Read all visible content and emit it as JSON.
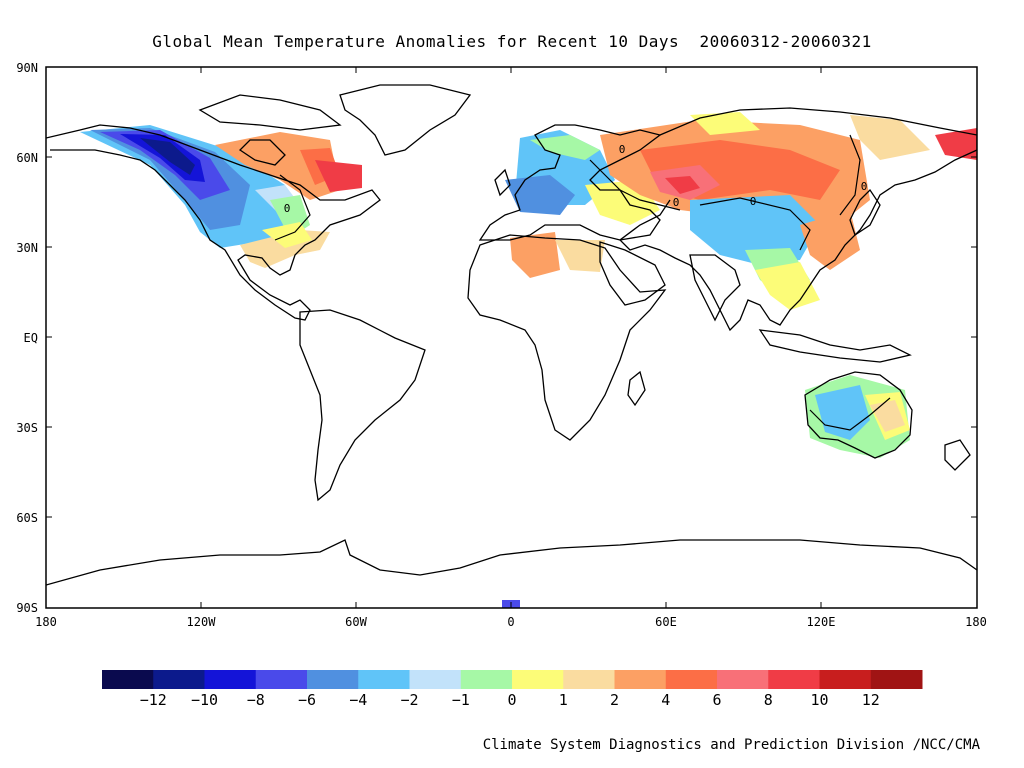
{
  "title": "Global Mean Temperature Anomalies for Recent 10 Days  20060312-20060321",
  "credit": "Climate System Diagnostics and Prediction Division /NCC/CMA",
  "map": {
    "projection": "equirectangular",
    "lon_range": [
      -180,
      180
    ],
    "lat_range": [
      -90,
      90
    ],
    "y_axis_labels": [
      "90N",
      "60N",
      "30N",
      "EQ",
      "30S",
      "60S",
      "90S"
    ],
    "x_axis_labels": [
      "180",
      "120W",
      "60W",
      "0",
      "60E",
      "120E",
      "180"
    ],
    "contour_line": "0"
  },
  "colorbar": {
    "colors": [
      "#0a0a4e",
      "#0c1a8c",
      "#1414d8",
      "#4a4aea",
      "#5090e0",
      "#60c4f8",
      "#c2e2fa",
      "#a6f8a6",
      "#fcfc78",
      "#fadca0",
      "#fca064",
      "#fc6e46",
      "#f87078",
      "#f03c46",
      "#c81e1e",
      "#a01414"
    ],
    "labels": [
      "-12",
      "-10",
      "-8",
      "-6",
      "-4",
      "-2",
      "-1",
      "0",
      "1",
      "2",
      "4",
      "6",
      "8",
      "10",
      "12"
    ]
  },
  "anomaly_regions": [
    {
      "region": "Alaska / Western Canada",
      "anomaly": -10
    },
    {
      "region": "Central Canada",
      "anomaly": -8
    },
    {
      "region": "Western United States",
      "anomaly": -4
    },
    {
      "region": "Eastern Canada / Quebec",
      "anomaly": 8
    },
    {
      "region": "Southern United States",
      "anomaly": 2
    },
    {
      "region": "Western Russia / Kazakhstan",
      "anomaly": 8
    },
    {
      "region": "Siberia",
      "anomaly": 4
    },
    {
      "region": "Central Asia (Tibet)",
      "anomaly": -4
    },
    {
      "region": "Europe",
      "anomaly": -4
    },
    {
      "region": "Far East Russia",
      "anomaly": 10
    },
    {
      "region": "Australia",
      "anomaly": -2
    }
  ]
}
